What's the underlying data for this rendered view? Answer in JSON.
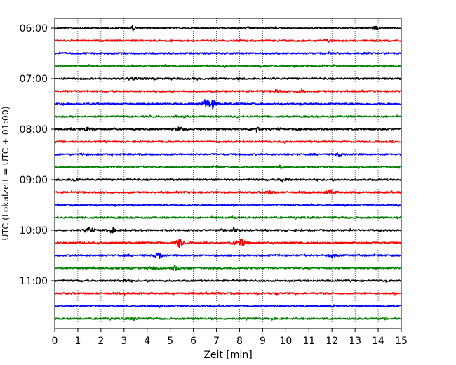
{
  "chart_data": {
    "type": "line",
    "chart_kind": "helicorder",
    "xlabel": "Zeit  [min]",
    "ylabel": "UTC (Lokalzeit = UTC + 01:00)",
    "xlim": [
      0,
      15
    ],
    "x_ticks": [
      "0",
      "1",
      "2",
      "3",
      "4",
      "5",
      "6",
      "7",
      "8",
      "9",
      "10",
      "11",
      "12",
      "13",
      "14",
      "15"
    ],
    "y_tick_labels": [
      "06:00",
      "07:00",
      "08:00",
      "09:00",
      "10:00",
      "11:00"
    ],
    "trace_interval_min": 15,
    "trace_count": 24,
    "first_trace_start": "06:00",
    "trace_color_cycle": [
      "#000000",
      "#ff0000",
      "#0000ff",
      "#008000"
    ],
    "vertical_grid": "dotted",
    "events": [
      {
        "trace": 0,
        "x": 3.4,
        "amp": 0.9
      },
      {
        "trace": 0,
        "x": 13.9,
        "amp": 0.7
      },
      {
        "trace": 1,
        "x": 11.8,
        "amp": 0.5
      },
      {
        "trace": 4,
        "x": 3.4,
        "amp": 0.5
      },
      {
        "trace": 5,
        "x": 9.6,
        "amp": 0.7
      },
      {
        "trace": 5,
        "x": 10.7,
        "amp": 0.8
      },
      {
        "trace": 6,
        "x": 6.55,
        "amp": 2.3
      },
      {
        "trace": 6,
        "x": 6.85,
        "amp": 1.6
      },
      {
        "trace": 8,
        "x": 1.4,
        "amp": 0.7
      },
      {
        "trace": 8,
        "x": 5.4,
        "amp": 0.8
      },
      {
        "trace": 8,
        "x": 8.75,
        "amp": 1.0
      },
      {
        "trace": 10,
        "x": 12.3,
        "amp": 0.5
      },
      {
        "trace": 11,
        "x": 7.0,
        "amp": 0.6
      },
      {
        "trace": 11,
        "x": 9.8,
        "amp": 0.6
      },
      {
        "trace": 12,
        "x": 0.9,
        "amp": 0.7
      },
      {
        "trace": 12,
        "x": 9.9,
        "amp": 0.8
      },
      {
        "trace": 13,
        "x": 9.3,
        "amp": 0.7
      },
      {
        "trace": 13,
        "x": 11.95,
        "amp": 1.0
      },
      {
        "trace": 16,
        "x": 1.5,
        "amp": 0.9
      },
      {
        "trace": 16,
        "x": 2.5,
        "amp": 0.8
      },
      {
        "trace": 16,
        "x": 7.75,
        "amp": 0.8
      },
      {
        "trace": 17,
        "x": 5.4,
        "amp": 1.9
      },
      {
        "trace": 17,
        "x": 7.8,
        "amp": 1.1
      },
      {
        "trace": 17,
        "x": 8.1,
        "amp": 1.4
      },
      {
        "trace": 18,
        "x": 4.5,
        "amp": 1.4
      },
      {
        "trace": 18,
        "x": 12.0,
        "amp": 0.5
      },
      {
        "trace": 19,
        "x": 4.2,
        "amp": 0.6
      },
      {
        "trace": 19,
        "x": 5.2,
        "amp": 0.9
      },
      {
        "trace": 20,
        "x": 3.0,
        "amp": 0.6
      },
      {
        "trace": 22,
        "x": 12.0,
        "amp": 0.5
      },
      {
        "trace": 23,
        "x": 3.45,
        "amp": 0.7
      }
    ]
  }
}
